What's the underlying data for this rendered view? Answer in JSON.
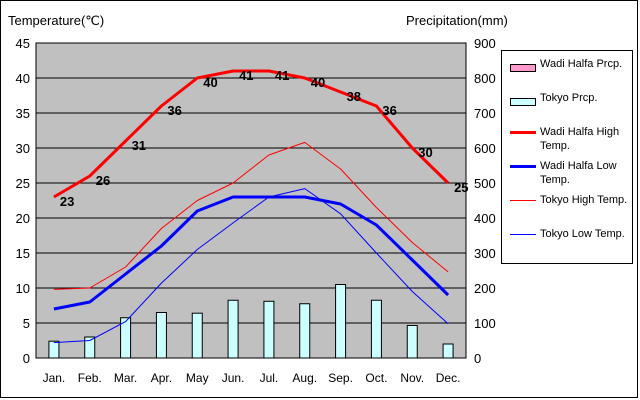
{
  "chart_data": {
    "type": "line",
    "categories": [
      "Jan.",
      "Feb.",
      "Mar.",
      "Apr.",
      "May",
      "Jun.",
      "Jul.",
      "Aug.",
      "Sep.",
      "Oct.",
      "Nov.",
      "Dec."
    ],
    "left_axis": {
      "label": "Temperature(℃)",
      "min": 0,
      "max": 45,
      "step": 5
    },
    "right_axis": {
      "label": "Precipitation(mm)",
      "min": 0,
      "max": 900,
      "step": 100
    },
    "plot_background": "#c0c0c0",
    "grid": true,
    "legend_position": "right",
    "series": [
      {
        "name": "Wadi Halfa Prcp.",
        "kind": "bar",
        "axis": "right",
        "color": "#ff99cc",
        "values": [
          0,
          0,
          0,
          0,
          0,
          0,
          0,
          0,
          0,
          0,
          0,
          0
        ]
      },
      {
        "name": "Tokyo Prcp.",
        "kind": "bar",
        "axis": "right",
        "color": "#ccffff",
        "values": [
          48,
          60,
          115,
          130,
          128,
          165,
          162,
          155,
          210,
          165,
          93,
          40
        ]
      },
      {
        "name": "Wadi Halfa High Temp.",
        "kind": "line",
        "axis": "left",
        "color": "#ff0000",
        "width": 3,
        "values": [
          23,
          26,
          31,
          36,
          40,
          41,
          41,
          40,
          38,
          36,
          30,
          25
        ],
        "labels": [
          "23",
          "26",
          "31",
          "36",
          "40",
          "41",
          "41",
          "40",
          "38",
          "36",
          "30",
          "25"
        ]
      },
      {
        "name": "Wadi Halfa Low Temp.",
        "kind": "line",
        "axis": "left",
        "color": "#0000ff",
        "width": 3,
        "values": [
          7,
          8,
          12,
          16,
          21,
          23,
          23,
          23,
          22,
          19,
          14,
          9
        ]
      },
      {
        "name": "Tokyo High Temp.",
        "kind": "line",
        "axis": "left",
        "color": "#ff0000",
        "width": 1,
        "values": [
          9.8,
          10,
          13,
          18.5,
          22.5,
          25,
          29,
          30.8,
          27,
          21.5,
          16.5,
          12.3
        ]
      },
      {
        "name": "Tokyo Low Temp.",
        "kind": "line",
        "axis": "left",
        "color": "#0000ff",
        "width": 1,
        "values": [
          2.2,
          2.5,
          5.2,
          10.7,
          15.5,
          19.3,
          23,
          24.2,
          20.6,
          15,
          9.5,
          4.9
        ]
      }
    ]
  }
}
